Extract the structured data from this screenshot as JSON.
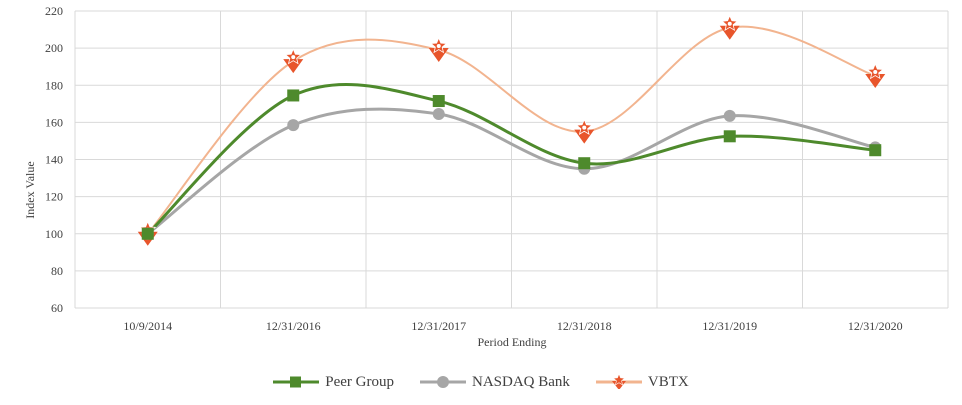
{
  "chart_data": {
    "type": "line",
    "xlabel": "Period Ending",
    "ylabel": "Index Value",
    "categories": [
      "10/9/2014",
      "12/31/2016",
      "12/31/2017",
      "12/31/2018",
      "12/31/2019",
      "12/31/2020"
    ],
    "ylim": [
      60,
      220
    ],
    "yticks": [
      60,
      80,
      100,
      120,
      140,
      160,
      180,
      200,
      220
    ],
    "grid": true,
    "legend_position": "bottom",
    "smooth": true,
    "series": [
      {
        "name": "Peer Group",
        "color": "#4e8a2c",
        "marker": "square",
        "values": [
          100,
          174.5,
          171.5,
          138,
          152.5,
          145
        ]
      },
      {
        "name": "NASDAQ Bank",
        "color": "#a6a6a6",
        "marker": "circle",
        "values": [
          100,
          158.5,
          164.5,
          135,
          163.5,
          146.5
        ]
      },
      {
        "name": "VBTX",
        "color": "#e8552b",
        "line_color": "#f2b48f",
        "marker": "star",
        "values": [
          100,
          193,
          199,
          155,
          211,
          185
        ]
      }
    ]
  }
}
